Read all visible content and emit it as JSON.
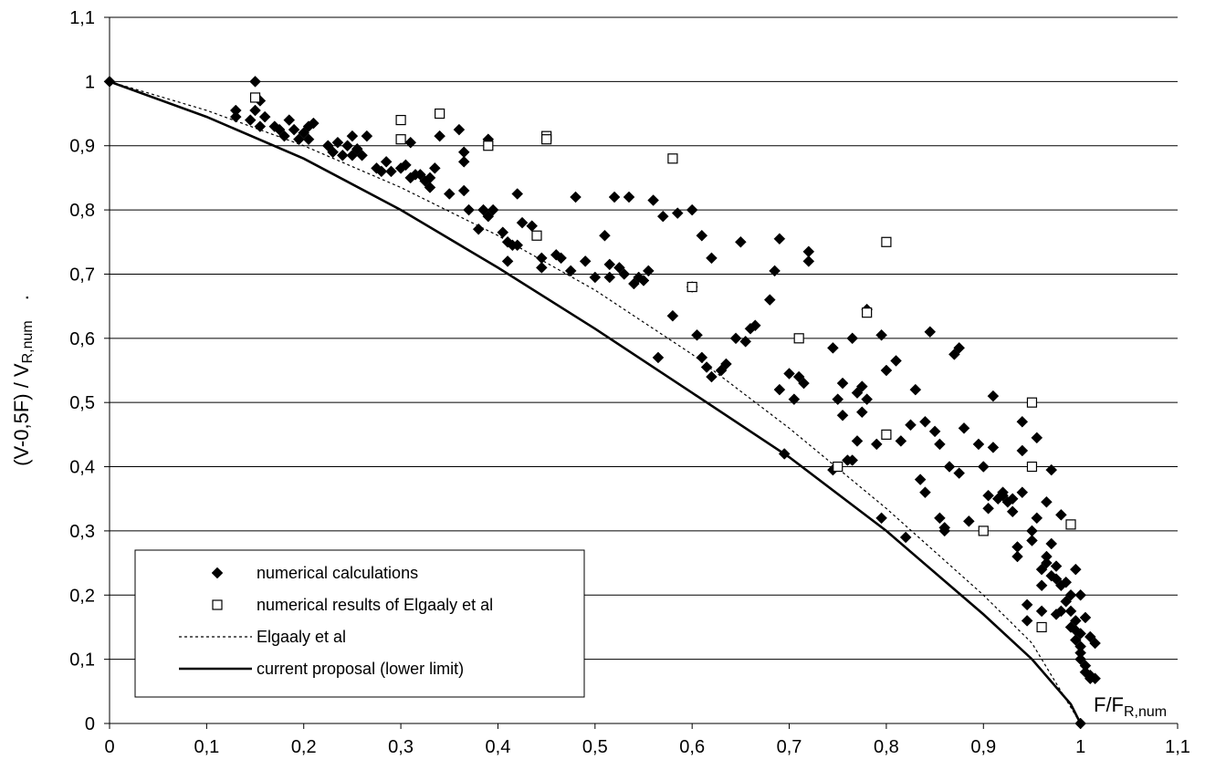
{
  "chart_data": {
    "type": "scatter",
    "title": "",
    "xlabel": "F/F",
    "xlabel_sub": "R,num",
    "ylabel_pre": "(V-0,5F) / V",
    "ylabel_sub": "R,num",
    "ylabel_dot": ".",
    "xlim": [
      0,
      1.1
    ],
    "ylim": [
      0,
      1.1
    ],
    "x_ticks": [
      "0",
      "0,1",
      "0,2",
      "0,3",
      "0,4",
      "0,5",
      "0,6",
      "0,7",
      "0,8",
      "0,9",
      "1",
      "1,1"
    ],
    "y_ticks": [
      "0",
      "0,1",
      "0,2",
      "0,3",
      "0,4",
      "0,5",
      "0,6",
      "0,7",
      "0,8",
      "0,9",
      "1",
      "1,1"
    ],
    "grid": "horizontal",
    "legend_position": "bottom-left",
    "colors": {
      "marker": "#000000",
      "line": "#000000",
      "grid": "#000000",
      "background": "#ffffff"
    },
    "series": [
      {
        "name": "numerical calculations",
        "kind": "scatter",
        "marker": "filled-diamond",
        "points": [
          [
            0,
            1
          ],
          [
            1,
            0
          ],
          [
            0.13,
            0.945
          ],
          [
            0.13,
            0.955
          ],
          [
            0.145,
            0.94
          ],
          [
            0.15,
            0.955
          ],
          [
            0.15,
            1.0
          ],
          [
            0.155,
            0.97
          ],
          [
            0.155,
            0.93
          ],
          [
            0.16,
            0.945
          ],
          [
            0.17,
            0.93
          ],
          [
            0.175,
            0.925
          ],
          [
            0.18,
            0.915
          ],
          [
            0.185,
            0.94
          ],
          [
            0.19,
            0.925
          ],
          [
            0.195,
            0.91
          ],
          [
            0.2,
            0.92
          ],
          [
            0.205,
            0.93
          ],
          [
            0.205,
            0.91
          ],
          [
            0.21,
            0.935
          ],
          [
            0.225,
            0.9
          ],
          [
            0.23,
            0.89
          ],
          [
            0.235,
            0.905
          ],
          [
            0.24,
            0.885
          ],
          [
            0.245,
            0.9
          ],
          [
            0.25,
            0.885
          ],
          [
            0.25,
            0.915
          ],
          [
            0.255,
            0.895
          ],
          [
            0.26,
            0.885
          ],
          [
            0.265,
            0.915
          ],
          [
            0.275,
            0.865
          ],
          [
            0.28,
            0.86
          ],
          [
            0.285,
            0.875
          ],
          [
            0.29,
            0.86
          ],
          [
            0.3,
            0.865
          ],
          [
            0.305,
            0.87
          ],
          [
            0.31,
            0.905
          ],
          [
            0.31,
            0.85
          ],
          [
            0.315,
            0.855
          ],
          [
            0.32,
            0.855
          ],
          [
            0.325,
            0.845
          ],
          [
            0.33,
            0.835
          ],
          [
            0.33,
            0.85
          ],
          [
            0.335,
            0.865
          ],
          [
            0.34,
            0.915
          ],
          [
            0.35,
            0.825
          ],
          [
            0.36,
            0.925
          ],
          [
            0.365,
            0.83
          ],
          [
            0.365,
            0.89
          ],
          [
            0.365,
            0.875
          ],
          [
            0.37,
            0.8
          ],
          [
            0.38,
            0.77
          ],
          [
            0.385,
            0.8
          ],
          [
            0.39,
            0.91
          ],
          [
            0.39,
            0.79
          ],
          [
            0.395,
            0.8
          ],
          [
            0.405,
            0.765
          ],
          [
            0.41,
            0.72
          ],
          [
            0.41,
            0.75
          ],
          [
            0.415,
            0.745
          ],
          [
            0.42,
            0.825
          ],
          [
            0.42,
            0.745
          ],
          [
            0.425,
            0.78
          ],
          [
            0.435,
            0.775
          ],
          [
            0.445,
            0.725
          ],
          [
            0.445,
            0.71
          ],
          [
            0.46,
            0.73
          ],
          [
            0.465,
            0.725
          ],
          [
            0.475,
            0.705
          ],
          [
            0.48,
            0.82
          ],
          [
            0.49,
            0.72
          ],
          [
            0.5,
            0.695
          ],
          [
            0.51,
            0.76
          ],
          [
            0.515,
            0.715
          ],
          [
            0.515,
            0.695
          ],
          [
            0.52,
            0.82
          ],
          [
            0.525,
            0.71
          ],
          [
            0.53,
            0.7
          ],
          [
            0.535,
            0.82
          ],
          [
            0.54,
            0.685
          ],
          [
            0.545,
            0.695
          ],
          [
            0.55,
            0.69
          ],
          [
            0.555,
            0.705
          ],
          [
            0.56,
            0.815
          ],
          [
            0.565,
            0.57
          ],
          [
            0.57,
            0.79
          ],
          [
            0.58,
            0.635
          ],
          [
            0.585,
            0.795
          ],
          [
            0.6,
            0.8
          ],
          [
            0.6,
            0.68
          ],
          [
            0.605,
            0.605
          ],
          [
            0.61,
            0.57
          ],
          [
            0.61,
            0.76
          ],
          [
            0.615,
            0.555
          ],
          [
            0.62,
            0.725
          ],
          [
            0.62,
            0.54
          ],
          [
            0.63,
            0.55
          ],
          [
            0.635,
            0.56
          ],
          [
            0.645,
            0.6
          ],
          [
            0.65,
            0.75
          ],
          [
            0.655,
            0.595
          ],
          [
            0.66,
            0.615
          ],
          [
            0.665,
            0.62
          ],
          [
            0.68,
            0.66
          ],
          [
            0.685,
            0.705
          ],
          [
            0.69,
            0.52
          ],
          [
            0.69,
            0.755
          ],
          [
            0.695,
            0.42
          ],
          [
            0.7,
            0.545
          ],
          [
            0.705,
            0.505
          ],
          [
            0.71,
            0.54
          ],
          [
            0.715,
            0.53
          ],
          [
            0.72,
            0.735
          ],
          [
            0.72,
            0.72
          ],
          [
            0.745,
            0.395
          ],
          [
            0.745,
            0.585
          ],
          [
            0.75,
            0.505
          ],
          [
            0.755,
            0.48
          ],
          [
            0.755,
            0.53
          ],
          [
            0.76,
            0.41
          ],
          [
            0.765,
            0.41
          ],
          [
            0.765,
            0.6
          ],
          [
            0.77,
            0.515
          ],
          [
            0.77,
            0.44
          ],
          [
            0.775,
            0.525
          ],
          [
            0.775,
            0.485
          ],
          [
            0.78,
            0.505
          ],
          [
            0.78,
            0.645
          ],
          [
            0.79,
            0.435
          ],
          [
            0.795,
            0.605
          ],
          [
            0.795,
            0.32
          ],
          [
            0.8,
            0.55
          ],
          [
            0.81,
            0.565
          ],
          [
            0.815,
            0.44
          ],
          [
            0.82,
            0.29
          ],
          [
            0.825,
            0.465
          ],
          [
            0.83,
            0.52
          ],
          [
            0.835,
            0.38
          ],
          [
            0.84,
            0.47
          ],
          [
            0.84,
            0.36
          ],
          [
            0.845,
            0.61
          ],
          [
            0.85,
            0.455
          ],
          [
            0.855,
            0.435
          ],
          [
            0.855,
            0.32
          ],
          [
            0.86,
            0.305
          ],
          [
            0.86,
            0.3
          ],
          [
            0.865,
            0.4
          ],
          [
            0.87,
            0.575
          ],
          [
            0.875,
            0.585
          ],
          [
            0.875,
            0.39
          ],
          [
            0.88,
            0.46
          ],
          [
            0.885,
            0.315
          ],
          [
            0.895,
            0.435
          ],
          [
            0.9,
            0.4
          ],
          [
            0.905,
            0.355
          ],
          [
            0.905,
            0.335
          ],
          [
            0.91,
            0.51
          ],
          [
            0.91,
            0.43
          ],
          [
            0.915,
            0.35
          ],
          [
            0.92,
            0.355
          ],
          [
            0.92,
            0.36
          ],
          [
            0.925,
            0.345
          ],
          [
            0.93,
            0.33
          ],
          [
            0.93,
            0.35
          ],
          [
            0.935,
            0.275
          ],
          [
            0.935,
            0.26
          ],
          [
            0.94,
            0.36
          ],
          [
            0.94,
            0.47
          ],
          [
            0.94,
            0.425
          ],
          [
            0.945,
            0.185
          ],
          [
            0.945,
            0.16
          ],
          [
            0.95,
            0.285
          ],
          [
            0.95,
            0.3
          ],
          [
            0.955,
            0.445
          ],
          [
            0.955,
            0.32
          ],
          [
            0.96,
            0.24
          ],
          [
            0.96,
            0.215
          ],
          [
            0.96,
            0.175
          ],
          [
            0.965,
            0.345
          ],
          [
            0.965,
            0.25
          ],
          [
            0.965,
            0.26
          ],
          [
            0.97,
            0.28
          ],
          [
            0.97,
            0.395
          ],
          [
            0.97,
            0.23
          ],
          [
            0.975,
            0.17
          ],
          [
            0.975,
            0.245
          ],
          [
            0.975,
            0.225
          ],
          [
            0.98,
            0.175
          ],
          [
            0.98,
            0.215
          ],
          [
            0.98,
            0.325
          ],
          [
            0.985,
            0.22
          ],
          [
            0.985,
            0.19
          ],
          [
            0.99,
            0.15
          ],
          [
            0.99,
            0.2
          ],
          [
            0.99,
            0.175
          ],
          [
            0.995,
            0.24
          ],
          [
            0.995,
            0.145
          ],
          [
            0.995,
            0.13
          ],
          [
            0.995,
            0.16
          ],
          [
            1.0,
            0.12
          ],
          [
            1.0,
            0.2
          ],
          [
            1.0,
            0.14
          ],
          [
            1.0,
            0.11
          ],
          [
            1.0,
            0.1
          ],
          [
            1.005,
            0.09
          ],
          [
            1.005,
            0.165
          ],
          [
            1.005,
            0.08
          ],
          [
            1.01,
            0.075
          ],
          [
            1.01,
            0.07
          ],
          [
            1.01,
            0.135
          ],
          [
            1.015,
            0.07
          ],
          [
            1.015,
            0.125
          ]
        ]
      },
      {
        "name": "numerical results of Elgaaly et al",
        "kind": "scatter",
        "marker": "open-square",
        "points": [
          [
            0.15,
            0.975
          ],
          [
            0.3,
            0.94
          ],
          [
            0.3,
            0.91
          ],
          [
            0.34,
            0.95
          ],
          [
            0.39,
            0.9
          ],
          [
            0.44,
            0.76
          ],
          [
            0.45,
            0.915
          ],
          [
            0.45,
            0.91
          ],
          [
            0.58,
            0.88
          ],
          [
            0.6,
            0.68
          ],
          [
            0.71,
            0.6
          ],
          [
            0.75,
            0.4
          ],
          [
            0.78,
            0.64
          ],
          [
            0.8,
            0.75
          ],
          [
            0.8,
            0.45
          ],
          [
            0.9,
            0.3
          ],
          [
            0.95,
            0.5
          ],
          [
            0.95,
            0.4
          ],
          [
            0.96,
            0.15
          ],
          [
            0.99,
            0.31
          ]
        ]
      },
      {
        "name": "Elgaaly et al",
        "kind": "line",
        "style": "dotted",
        "points": [
          [
            0,
            1
          ],
          [
            0.1,
            0.955
          ],
          [
            0.2,
            0.9
          ],
          [
            0.3,
            0.835
          ],
          [
            0.4,
            0.76
          ],
          [
            0.5,
            0.675
          ],
          [
            0.6,
            0.575
          ],
          [
            0.7,
            0.46
          ],
          [
            0.8,
            0.335
          ],
          [
            0.9,
            0.2
          ],
          [
            0.95,
            0.125
          ],
          [
            1.0,
            0
          ]
        ]
      },
      {
        "name": "current proposal (lower limit)",
        "kind": "line",
        "style": "solid",
        "points": [
          [
            0,
            1
          ],
          [
            0.1,
            0.945
          ],
          [
            0.2,
            0.88
          ],
          [
            0.3,
            0.8
          ],
          [
            0.4,
            0.71
          ],
          [
            0.5,
            0.615
          ],
          [
            0.6,
            0.515
          ],
          [
            0.7,
            0.415
          ],
          [
            0.8,
            0.3
          ],
          [
            0.9,
            0.17
          ],
          [
            0.95,
            0.1
          ],
          [
            0.99,
            0.03
          ],
          [
            1.0,
            0
          ]
        ]
      }
    ]
  }
}
